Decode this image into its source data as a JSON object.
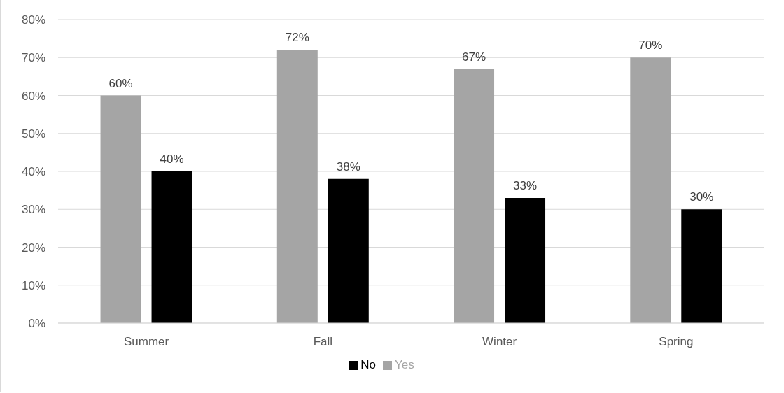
{
  "chart_data": {
    "type": "bar",
    "categories": [
      "Summer",
      "Fall",
      "Winter",
      "Spring"
    ],
    "series": [
      {
        "name": "Yes",
        "color": "#a5a5a5",
        "values": [
          60,
          72,
          67,
          70
        ],
        "value_labels": [
          "60%",
          "72%",
          "67%",
          "70%"
        ]
      },
      {
        "name": "No",
        "color": "#000000",
        "values": [
          40,
          38,
          33,
          30
        ],
        "value_labels": [
          "40%",
          "38%",
          "33%",
          "30%"
        ]
      }
    ],
    "ylim": [
      0,
      80
    ],
    "yticks": [
      {
        "value": 0,
        "label": "0%"
      },
      {
        "value": 10,
        "label": "10%"
      },
      {
        "value": 20,
        "label": "20%"
      },
      {
        "value": 30,
        "label": "30%"
      },
      {
        "value": 40,
        "label": "40%"
      },
      {
        "value": 50,
        "label": "50%"
      },
      {
        "value": 60,
        "label": "60%"
      },
      {
        "value": 70,
        "label": "70%"
      },
      {
        "value": 80,
        "label": "80%"
      }
    ],
    "grid": "y",
    "legend": "bottom"
  }
}
